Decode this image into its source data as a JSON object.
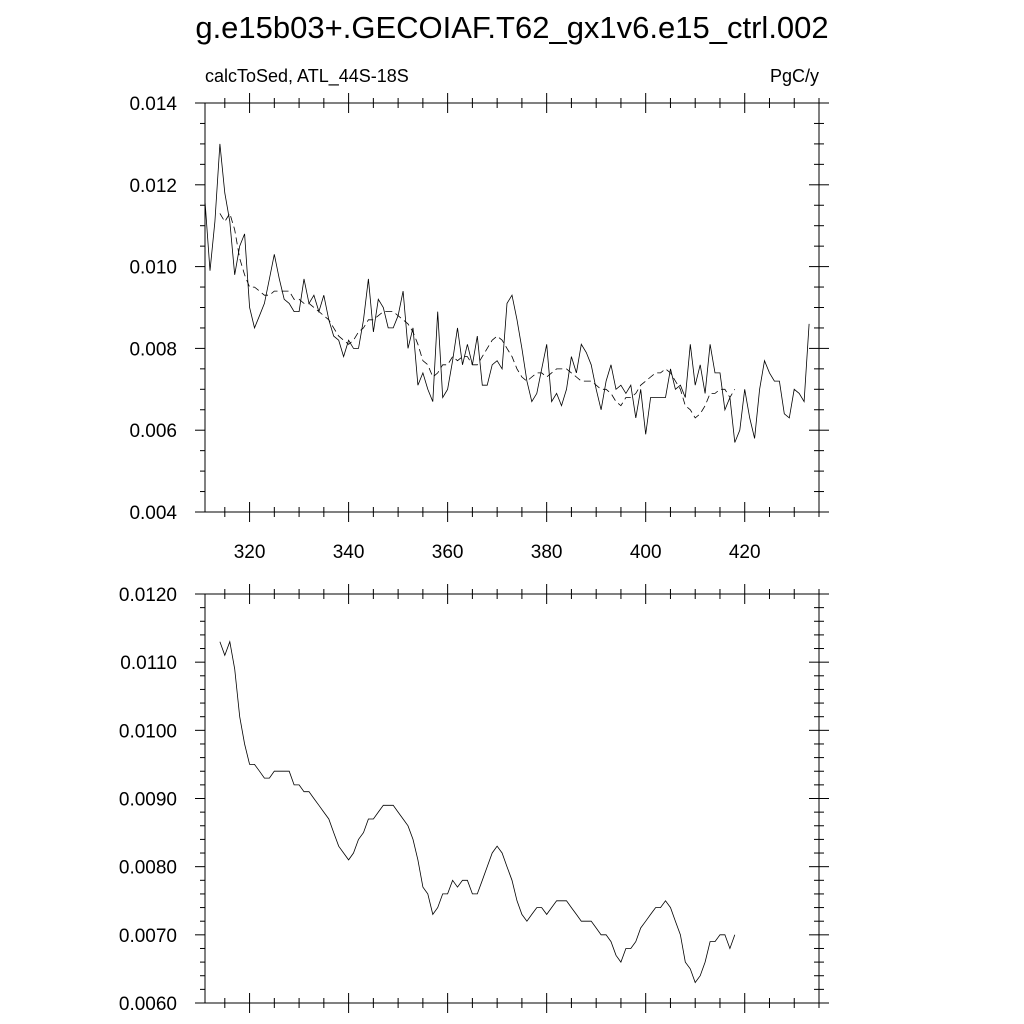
{
  "figure": {
    "title": "g.e15b03+.GECOIAF.T62_gx1v6.e15_ctrl.002"
  },
  "chart_data": [
    {
      "type": "line",
      "left_label": "calcToSed, ATL_44S-18S",
      "right_label": "PgC/y",
      "xlim": [
        311,
        435
      ],
      "ylim": [
        0.004,
        0.014
      ],
      "x_major_ticks": [
        320,
        340,
        360,
        380,
        400,
        420
      ],
      "x_minor_step": 5,
      "y_major_ticks": [
        0.004,
        0.006,
        0.008,
        0.01,
        0.012,
        0.014
      ],
      "y_tick_labels": [
        "0.004",
        "0.006",
        "0.008",
        "0.010",
        "0.012",
        "0.014"
      ],
      "y_minor_step": 0.0005,
      "x_start": 311,
      "series": [
        {
          "style": "solid",
          "values": [
            0.0116,
            0.0099,
            0.0111,
            0.013,
            0.0118,
            0.0111,
            0.0098,
            0.0105,
            0.0108,
            0.009,
            0.0085,
            0.0088,
            0.0091,
            0.0097,
            0.0103,
            0.0097,
            0.0092,
            0.0091,
            0.0089,
            0.0089,
            0.0097,
            0.0091,
            0.0093,
            0.0089,
            0.0093,
            0.0087,
            0.0083,
            0.0082,
            0.0078,
            0.0082,
            0.008,
            0.008,
            0.0087,
            0.0097,
            0.0084,
            0.0092,
            0.009,
            0.0085,
            0.0085,
            0.0088,
            0.0094,
            0.008,
            0.0085,
            0.0071,
            0.0074,
            0.007,
            0.0067,
            0.0089,
            0.0068,
            0.007,
            0.0077,
            0.0085,
            0.0076,
            0.0081,
            0.0076,
            0.0083,
            0.0071,
            0.0071,
            0.0076,
            0.0077,
            0.0075,
            0.0091,
            0.0093,
            0.0087,
            0.008,
            0.0072,
            0.0067,
            0.0069,
            0.0075,
            0.0081,
            0.0067,
            0.0069,
            0.0066,
            0.007,
            0.0078,
            0.0074,
            0.0081,
            0.0079,
            0.0076,
            0.007,
            0.0065,
            0.0072,
            0.0076,
            0.007,
            0.0071,
            0.0069,
            0.0071,
            0.0063,
            0.007,
            0.0059,
            0.0068,
            0.0068,
            0.0068,
            0.0068,
            0.0075,
            0.007,
            0.0071,
            0.0068,
            0.0081,
            0.0071,
            0.0076,
            0.0069,
            0.0081,
            0.0074,
            0.0074,
            0.0065,
            0.0068,
            0.0057,
            0.006,
            0.007,
            0.0063,
            0.0058,
            0.007,
            0.0077,
            0.0074,
            0.0072,
            0.0072,
            0.0064,
            0.0063,
            0.007,
            0.0069,
            0.0067,
            0.0086
          ]
        },
        {
          "style": "dashed",
          "values": [
            null,
            null,
            null,
            0.0113,
            0.0111,
            0.0113,
            0.0109,
            0.0102,
            0.0098,
            0.0095,
            0.0095,
            0.0094,
            0.0093,
            0.0093,
            0.0094,
            0.0094,
            0.0094,
            0.0094,
            0.0092,
            0.0092,
            0.0091,
            0.0091,
            0.009,
            0.0089,
            0.0088,
            0.0087,
            0.0085,
            0.0083,
            0.0082,
            0.0081,
            0.0082,
            0.0084,
            0.0085,
            0.0087,
            0.0087,
            0.0088,
            0.0089,
            0.0089,
            0.0089,
            0.0088,
            0.0087,
            0.0086,
            0.0084,
            0.0081,
            0.0077,
            0.0076,
            0.0073,
            0.0074,
            0.0076,
            0.0076,
            0.0078,
            0.0077,
            0.0078,
            0.0078,
            0.0076,
            0.0076,
            0.0078,
            0.008,
            0.0082,
            0.0083,
            0.0082,
            0.008,
            0.0078,
            0.0075,
            0.0073,
            0.0072,
            0.0073,
            0.0074,
            0.0074,
            0.0073,
            0.0074,
            0.0075,
            0.0075,
            0.0075,
            0.0074,
            0.0073,
            0.0072,
            0.0072,
            0.0072,
            0.0071,
            0.007,
            0.007,
            0.0069,
            0.0067,
            0.0066,
            0.0068,
            0.0068,
            0.0069,
            0.0071,
            0.0072,
            0.0073,
            0.0074,
            0.0074,
            0.0075,
            0.0074,
            0.0072,
            0.007,
            0.0066,
            0.0065,
            0.0063,
            0.0064,
            0.0066,
            0.0069,
            0.0069,
            0.007,
            0.007,
            0.0068,
            0.007,
            null,
            null
          ]
        }
      ]
    },
    {
      "type": "line",
      "xlim": [
        311,
        435
      ],
      "ylim": [
        0.006,
        0.012
      ],
      "x_major_ticks": [
        320,
        340,
        360,
        380,
        400,
        420
      ],
      "x_minor_step": 5,
      "y_major_ticks": [
        0.006,
        0.007,
        0.008,
        0.009,
        0.01,
        0.011,
        0.012
      ],
      "y_tick_labels": [
        "0.0060",
        "0.0070",
        "0.0080",
        "0.0090",
        "0.0100",
        "0.0110",
        "0.0120"
      ],
      "y_minor_step": 0.0002,
      "x_start": 314,
      "series": [
        {
          "style": "solid",
          "values": [
            0.0113,
            0.0111,
            0.0113,
            0.0109,
            0.0102,
            0.0098,
            0.0095,
            0.0095,
            0.0094,
            0.0093,
            0.0093,
            0.0094,
            0.0094,
            0.0094,
            0.0094,
            0.0092,
            0.0092,
            0.0091,
            0.0091,
            0.009,
            0.0089,
            0.0088,
            0.0087,
            0.0085,
            0.0083,
            0.0082,
            0.0081,
            0.0082,
            0.0084,
            0.0085,
            0.0087,
            0.0087,
            0.0088,
            0.0089,
            0.0089,
            0.0089,
            0.0088,
            0.0087,
            0.0086,
            0.0084,
            0.0081,
            0.0077,
            0.0076,
            0.0073,
            0.0074,
            0.0076,
            0.0076,
            0.0078,
            0.0077,
            0.0078,
            0.0078,
            0.0076,
            0.0076,
            0.0078,
            0.008,
            0.0082,
            0.0083,
            0.0082,
            0.008,
            0.0078,
            0.0075,
            0.0073,
            0.0072,
            0.0073,
            0.0074,
            0.0074,
            0.0073,
            0.0074,
            0.0075,
            0.0075,
            0.0075,
            0.0074,
            0.0073,
            0.0072,
            0.0072,
            0.0072,
            0.0071,
            0.007,
            0.007,
            0.0069,
            0.0067,
            0.0066,
            0.0068,
            0.0068,
            0.0069,
            0.0071,
            0.0072,
            0.0073,
            0.0074,
            0.0074,
            0.0075,
            0.0074,
            0.0072,
            0.007,
            0.0066,
            0.0065,
            0.0063,
            0.0064,
            0.0066,
            0.0069,
            0.0069,
            0.007,
            0.007,
            0.0068,
            0.007
          ]
        }
      ]
    }
  ]
}
